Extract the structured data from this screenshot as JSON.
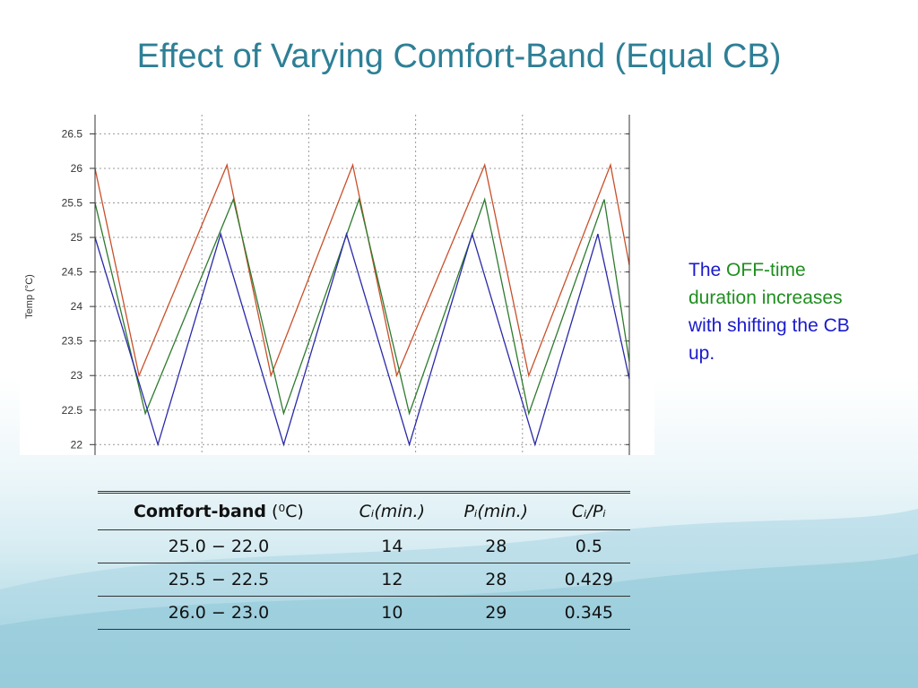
{
  "title": "Effect of Varying Comfort-Band (Equal CB)",
  "note": {
    "part1": "The ",
    "part2": "OFF-time duration increases",
    "part3": " with shifting the CB up."
  },
  "colors": {
    "title": "#2e7f96",
    "note_blue": "#1a1acc",
    "note_green": "#1f8f1f",
    "series_red": "#c8502a",
    "series_green": "#2e7a2e",
    "series_blue": "#2a2aa8"
  },
  "table": {
    "headers": [
      "Comfort-band",
      "(⁰C)",
      "Cᵢ(min.)",
      "Pᵢ(min.)",
      "Cᵢ/Pᵢ"
    ],
    "rows": [
      [
        "25.0 − 22.0",
        "14",
        "28",
        "0.5"
      ],
      [
        "25.5 − 22.5",
        "12",
        "28",
        "0.429"
      ],
      [
        "26.0 − 23.0",
        "10",
        "29",
        "0.345"
      ]
    ]
  },
  "chart_data": {
    "type": "line",
    "title": "",
    "xlabel": "",
    "ylabel": "Temp (°C)",
    "ylim": [
      21.9,
      26.7
    ],
    "y_ticks": [
      "26.5",
      "26",
      "25.5",
      "25",
      "24.5",
      "24",
      "23.5",
      "23",
      "22.5",
      "22"
    ],
    "grid": true,
    "series": [
      {
        "color": "#c8502a",
        "points": [
          [
            0,
            26.0
          ],
          [
            7,
            23.0
          ],
          [
            21,
            26.05
          ],
          [
            28,
            23.0
          ],
          [
            41,
            26.05
          ],
          [
            48,
            23.0
          ],
          [
            62,
            26.05
          ],
          [
            69,
            23.0
          ],
          [
            82,
            26.05
          ],
          [
            85,
            24.6
          ]
        ]
      },
      {
        "color": "#2e7a2e",
        "points": [
          [
            0,
            25.5
          ],
          [
            8,
            22.45
          ],
          [
            22,
            25.55
          ],
          [
            30,
            22.45
          ],
          [
            42,
            25.55
          ],
          [
            50,
            22.45
          ],
          [
            62,
            25.55
          ],
          [
            69,
            22.45
          ],
          [
            81,
            25.55
          ],
          [
            85,
            23.2
          ]
        ]
      },
      {
        "color": "#2a2aa8",
        "points": [
          [
            0,
            25.0
          ],
          [
            10,
            22.0
          ],
          [
            20,
            25.05
          ],
          [
            30,
            22.0
          ],
          [
            40,
            25.05
          ],
          [
            50,
            22.0
          ],
          [
            60,
            25.05
          ],
          [
            70,
            22.0
          ],
          [
            80,
            25.05
          ],
          [
            85,
            22.95
          ]
        ]
      }
    ],
    "xlim": [
      0,
      85
    ]
  }
}
